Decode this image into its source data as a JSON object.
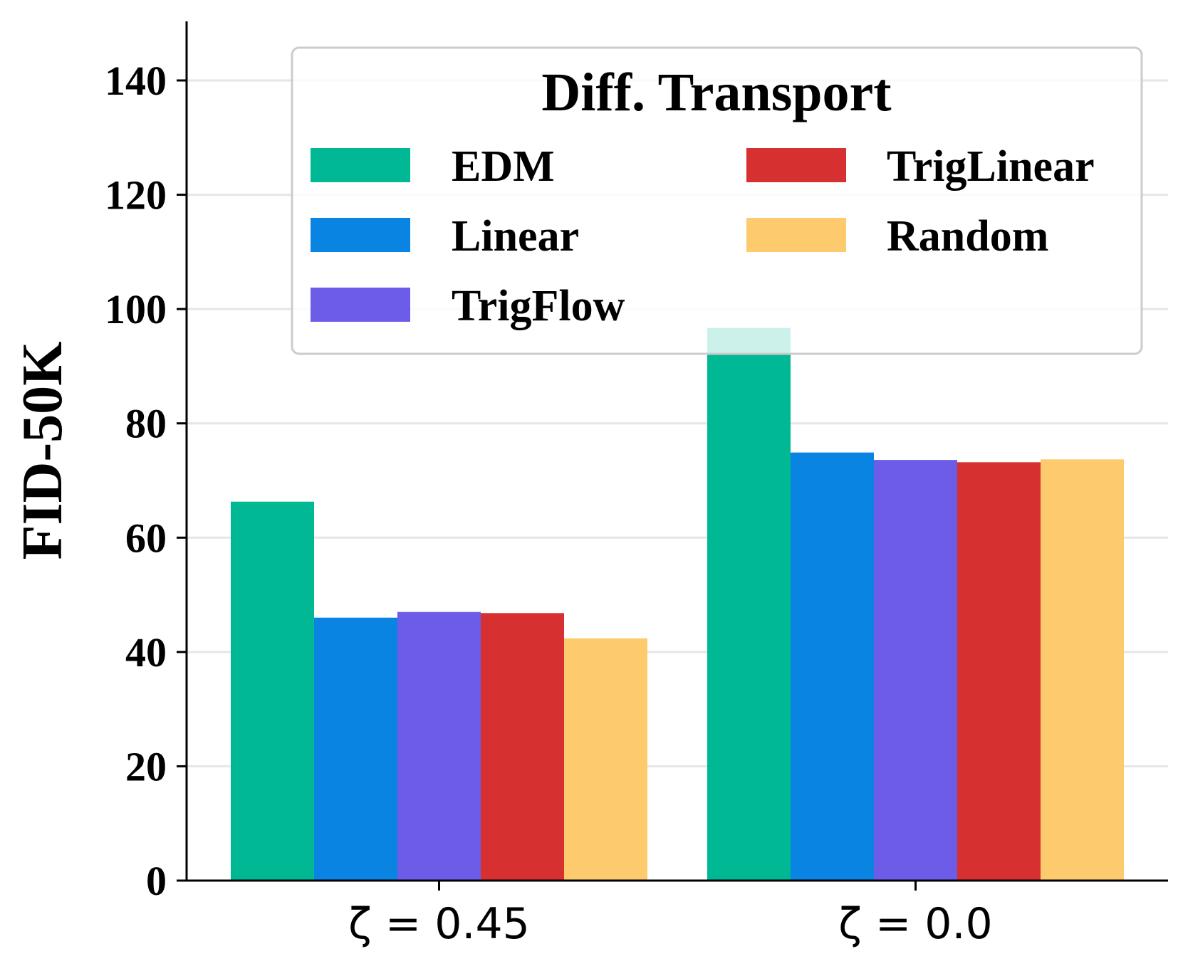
{
  "chart_data": {
    "type": "bar",
    "title": "",
    "xlabel": "",
    "ylabel": "FID-50K",
    "ylim": [
      0,
      150
    ],
    "yticks": [
      0,
      20,
      40,
      60,
      80,
      100,
      120,
      140
    ],
    "grid": true,
    "categories": [
      "ζ = 0.45",
      "ζ = 0.0"
    ],
    "series": [
      {
        "name": "EDM",
        "color": "#00b894",
        "values": [
          66.3,
          96.7
        ]
      },
      {
        "name": "Linear",
        "color": "#0984e3",
        "values": [
          46.0,
          74.9
        ]
      },
      {
        "name": "TrigFlow",
        "color": "#6c5ce7",
        "values": [
          47.0,
          73.6
        ]
      },
      {
        "name": "TrigLinear",
        "color": "#d63031",
        "values": [
          46.8,
          73.2
        ]
      },
      {
        "name": "Random",
        "color": "#fdcb6e",
        "values": [
          42.4,
          73.7
        ]
      }
    ],
    "legend": {
      "title": "Diff. Transport",
      "placement": "top-right",
      "columns": 2
    }
  }
}
